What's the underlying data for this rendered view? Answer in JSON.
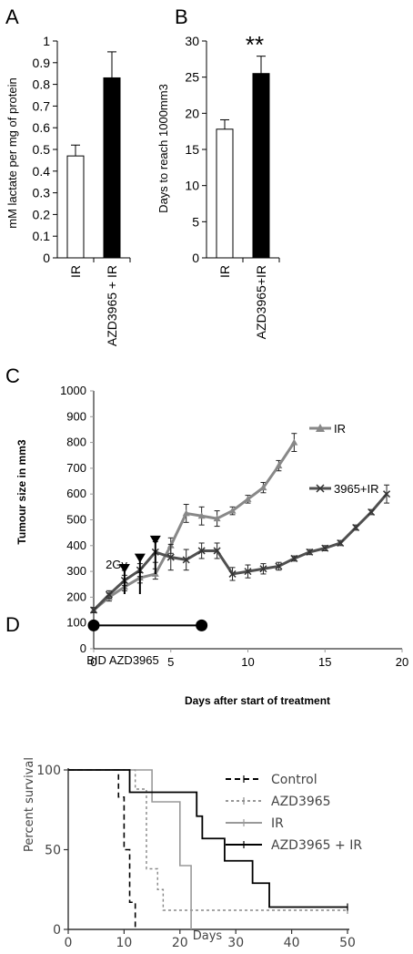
{
  "chart_data": [
    {
      "panel": "A",
      "type": "bar",
      "categories": [
        "IR",
        "AZD3965 + IR"
      ],
      "values": [
        0.47,
        0.83
      ],
      "errors": [
        0.05,
        0.12
      ],
      "fills": [
        "#ffffff",
        "#000000"
      ],
      "ylabel": "mM lactate per mg of protein",
      "ylim": [
        0,
        1
      ],
      "yticks": [
        0,
        0.1,
        0.2,
        0.3,
        0.4,
        0.5,
        0.6,
        0.7,
        0.8,
        0.9,
        1
      ]
    },
    {
      "panel": "B",
      "type": "bar",
      "categories": [
        "IR",
        "AZD3965+IR"
      ],
      "values": [
        17.8,
        25.5
      ],
      "errors": [
        1.3,
        2.4
      ],
      "fills": [
        "#ffffff",
        "#000000"
      ],
      "ylabel": "Days to reach 1000mm3",
      "ylim": [
        0,
        30
      ],
      "yticks": [
        0,
        5,
        10,
        15,
        20,
        25,
        30
      ],
      "annotation": "**"
    },
    {
      "panel": "C",
      "type": "line",
      "xlabel": "Days after start of treatment",
      "ylabel": "Tumour size in mm3",
      "xlim": [
        0,
        20
      ],
      "ylim": [
        0,
        1000
      ],
      "xticks": [
        0,
        5,
        10,
        15,
        20
      ],
      "yticks": [
        0,
        100,
        200,
        300,
        400,
        500,
        600,
        700,
        800,
        900,
        1000
      ],
      "series": [
        {
          "name": "IR",
          "color": "#888888",
          "marker": "triangle",
          "x": [
            0,
            1,
            2,
            3,
            4,
            5,
            6,
            7,
            8,
            9,
            10,
            11,
            12,
            13
          ],
          "y": [
            150,
            200,
            240,
            275,
            290,
            400,
            525,
            515,
            505,
            535,
            580,
            625,
            710,
            800
          ],
          "err": [
            10,
            15,
            15,
            20,
            20,
            30,
            35,
            35,
            30,
            15,
            15,
            20,
            20,
            35
          ]
        },
        {
          "name": "3965+IR",
          "color": "#505050",
          "marker": "x",
          "x": [
            0,
            1,
            2,
            3,
            4,
            5,
            6,
            7,
            8,
            9,
            10,
            11,
            12,
            13,
            14,
            15,
            16,
            17,
            18,
            19
          ],
          "y": [
            150,
            210,
            265,
            305,
            375,
            355,
            345,
            380,
            380,
            290,
            300,
            310,
            320,
            350,
            375,
            390,
            410,
            470,
            530,
            600
          ],
          "err": [
            10,
            15,
            20,
            25,
            40,
            50,
            40,
            30,
            30,
            25,
            25,
            20,
            15,
            10,
            10,
            10,
            10,
            10,
            10,
            35
          ]
        }
      ],
      "arrow_days": [
        2,
        3,
        4
      ],
      "arrow_label": "2Gy",
      "treatment_label": "BID AZD3965",
      "treatment_range": [
        0,
        7
      ],
      "treatment_y": 140
    },
    {
      "panel": "D",
      "type": "line",
      "xlabel": "Days",
      "ylabel": "Percent survival",
      "xlim": [
        0,
        50
      ],
      "ylim": [
        0,
        100
      ],
      "xticks": [
        0,
        10,
        20,
        30,
        40,
        50
      ],
      "yticks": [
        0,
        50,
        100
      ],
      "series": [
        {
          "name": "Control",
          "color": "#000000",
          "dash": "6,4",
          "width": 1.6,
          "x": [
            0,
            9,
            9,
            10,
            10,
            11,
            11,
            12,
            12
          ],
          "y": [
            100,
            100,
            83,
            83,
            50,
            50,
            17,
            17,
            0
          ]
        },
        {
          "name": "AZD3965",
          "color": "#888888",
          "dash": "3,3",
          "width": 1.4,
          "x": [
            0,
            12,
            12,
            14,
            14,
            16,
            16,
            17,
            17,
            50
          ],
          "y": [
            100,
            100,
            88,
            88,
            38,
            38,
            25,
            25,
            12,
            12
          ]
        },
        {
          "name": "IR",
          "color": "#999999",
          "dash": "",
          "width": 1.6,
          "x": [
            0,
            15,
            15,
            20,
            20,
            22,
            22
          ],
          "y": [
            100,
            100,
            80,
            80,
            40,
            40,
            0
          ]
        },
        {
          "name": "AZD3965 + IR",
          "color": "#000000",
          "dash": "",
          "width": 1.8,
          "x": [
            0,
            11,
            11,
            13,
            13,
            23,
            23,
            24,
            24,
            28,
            28,
            33,
            33,
            36,
            36,
            50
          ],
          "y": [
            100,
            100,
            86,
            86,
            86,
            86,
            71,
            71,
            57,
            57,
            43,
            43,
            29,
            29,
            14,
            14
          ]
        }
      ]
    }
  ]
}
